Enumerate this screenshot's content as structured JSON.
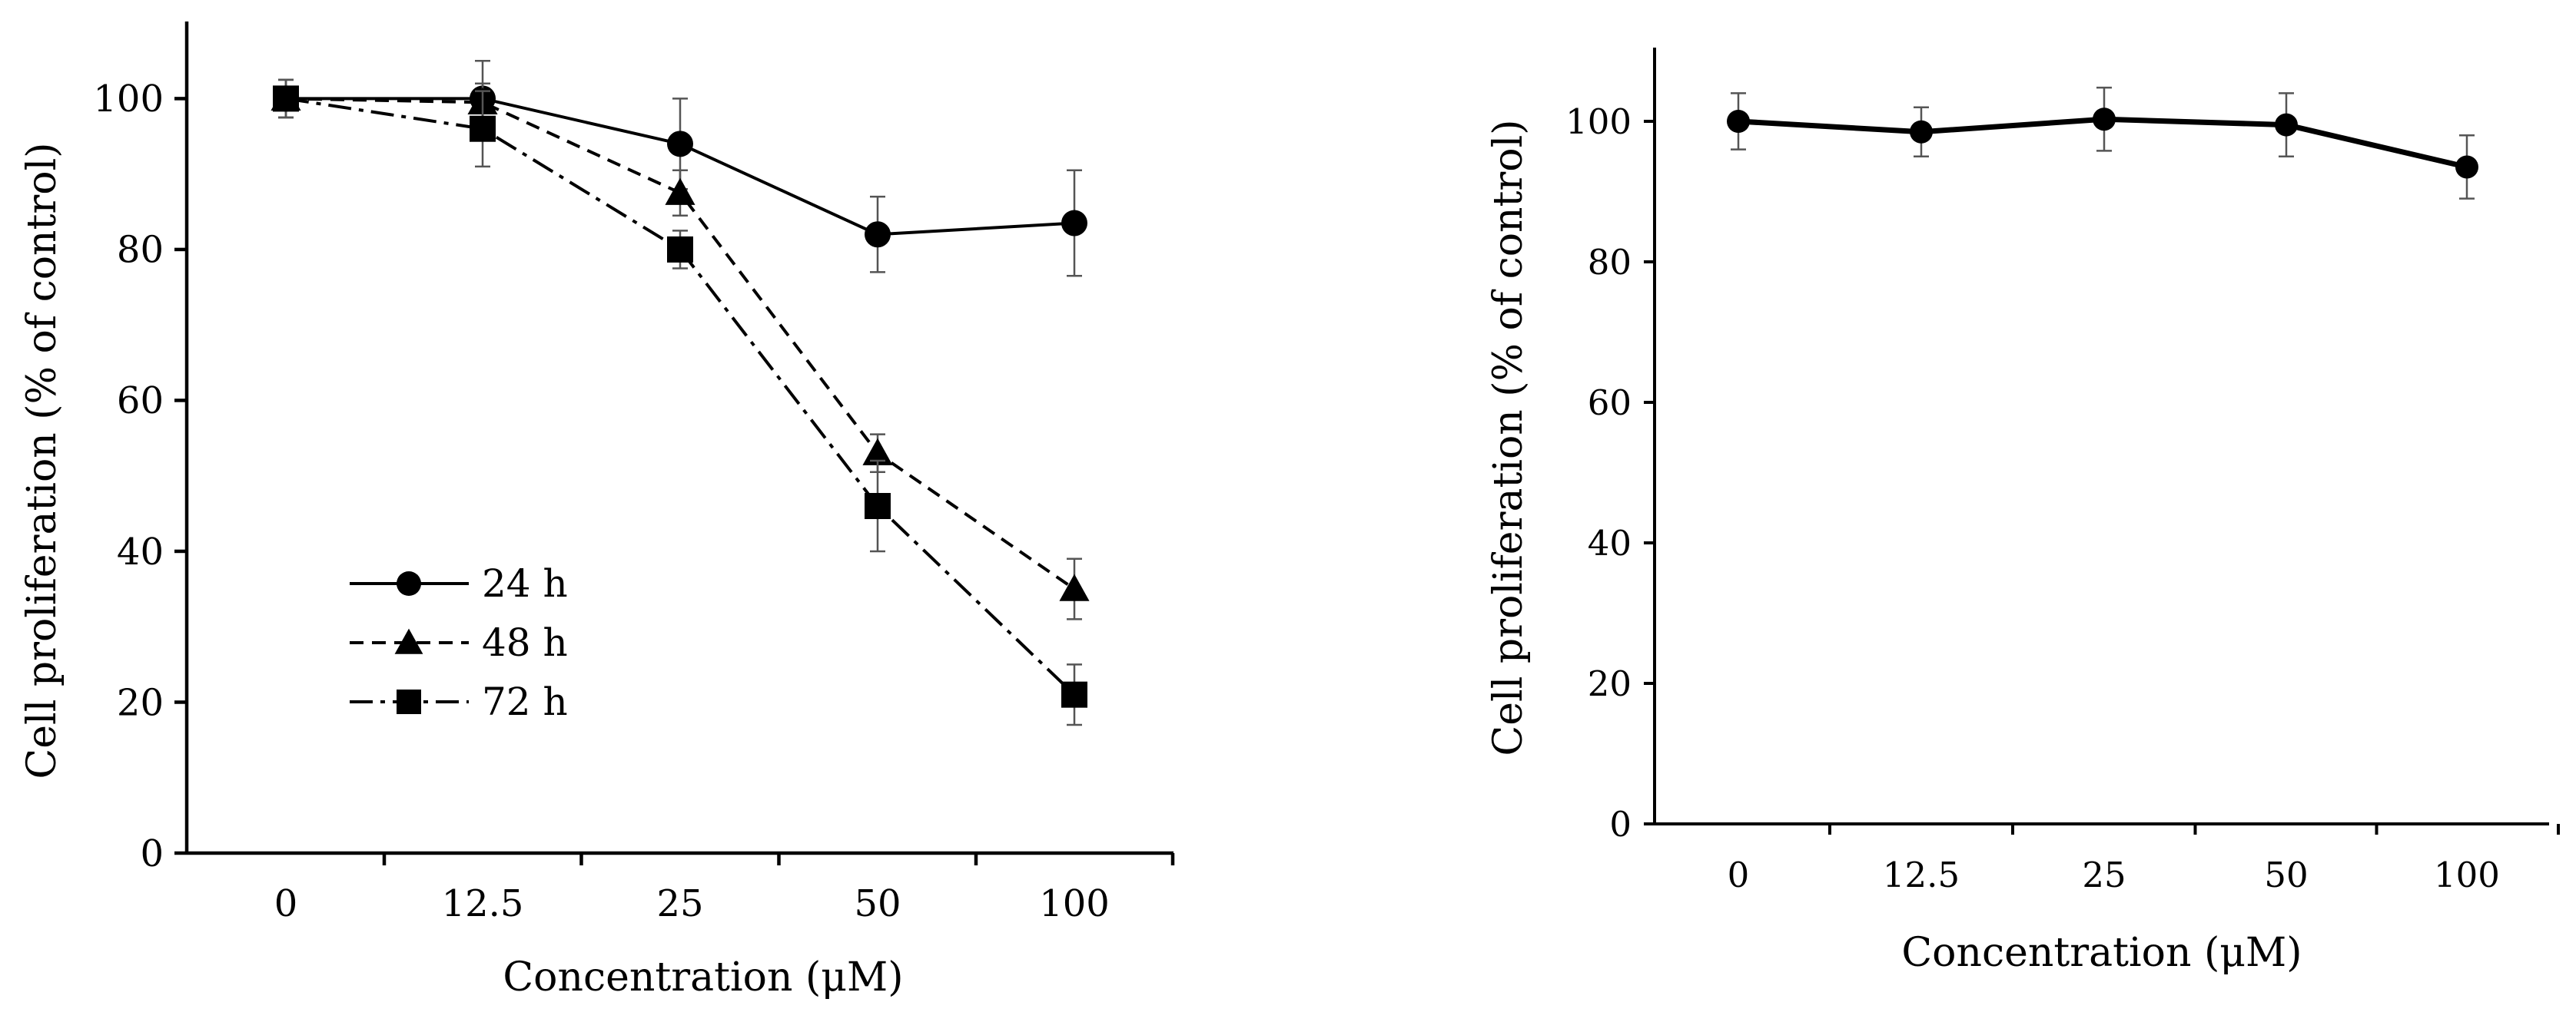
{
  "chart_data": [
    {
      "type": "line",
      "categories": [
        "0",
        "12.5",
        "25",
        "50",
        "100"
      ],
      "xlabel": "Concentration (μM)",
      "ylabel": "Cell proliferation (% of control)",
      "ylim": [
        0,
        110
      ],
      "yticks": [
        "0",
        "20",
        "40",
        "60",
        "80",
        "100"
      ],
      "ytick_values": [
        0,
        20,
        40,
        60,
        80,
        100
      ],
      "grid": false,
      "legend_position": "bottom-left",
      "series": [
        {
          "name": "24 h",
          "marker": "circle",
          "dash": "solid",
          "values": [
            100,
            100,
            94,
            82,
            83.5
          ],
          "errors": [
            2.5,
            5,
            6,
            5,
            7
          ]
        },
        {
          "name": "48 h",
          "marker": "triangle",
          "dash": "dashed",
          "values": [
            100,
            99.5,
            87.5,
            53,
            35
          ],
          "errors": [
            2.5,
            2.5,
            3,
            2.5,
            4
          ]
        },
        {
          "name": "72 h",
          "marker": "square",
          "dash": "dashdot",
          "values": [
            100,
            96,
            80,
            46,
            21
          ],
          "errors": [
            2.5,
            5,
            2.5,
            6,
            4
          ]
        }
      ]
    },
    {
      "type": "line",
      "categories": [
        "0",
        "12.5",
        "25",
        "50",
        "100"
      ],
      "xlabel": "Concentration (μM)",
      "ylabel": "Cell proliferation (% of control)",
      "ylim": [
        0,
        110
      ],
      "yticks": [
        "0",
        "20",
        "40",
        "60",
        "80",
        "100"
      ],
      "ytick_values": [
        0,
        20,
        40,
        60,
        80,
        100
      ],
      "grid": false,
      "legend_position": "none",
      "series": [
        {
          "name": "",
          "marker": "circle",
          "dash": "solid",
          "values": [
            100,
            98.5,
            100.3,
            99.5,
            93.5
          ],
          "errors": [
            4,
            3.5,
            4.5,
            4.5,
            4.5
          ]
        }
      ]
    }
  ]
}
